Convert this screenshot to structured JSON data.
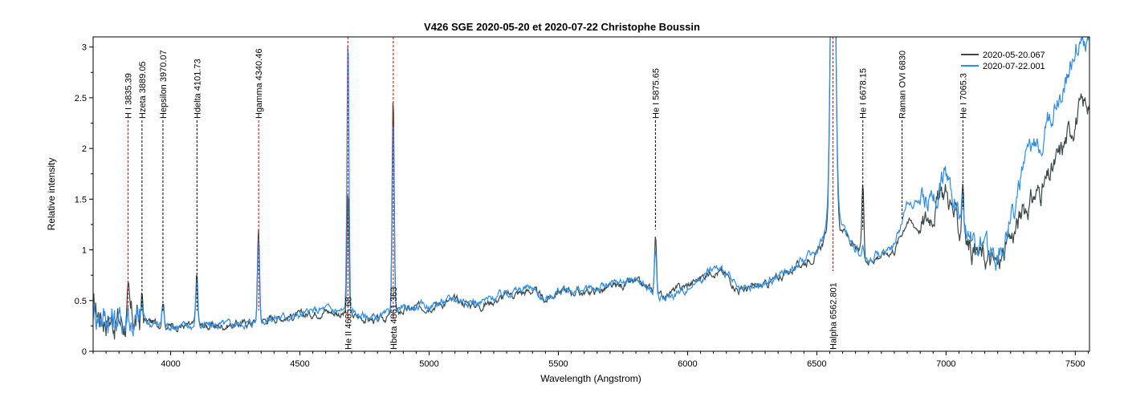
{
  "chart_data": {
    "type": "line",
    "title": "V426 SGE   2020-05-20 et 2020-07-22   Christophe Boussin",
    "xlabel": "Wavelength (Angstrom)",
    "ylabel": "Relative intensity",
    "xlim": [
      3700,
      7555
    ],
    "ylim": [
      0,
      3.1
    ],
    "xticks": [
      4000,
      4500,
      5000,
      5500,
      6000,
      6500,
      7000,
      7500
    ],
    "yticks": [
      0,
      0.5,
      1,
      1.5,
      2,
      2.5,
      3
    ],
    "legend_position": "top-right",
    "series": [
      {
        "name": "2020-05-20.067",
        "color": "#3a4a48",
        "continuum": [
          [
            3700,
            0.4
          ],
          [
            3800,
            0.3
          ],
          [
            3900,
            0.3
          ],
          [
            4000,
            0.25
          ],
          [
            4100,
            0.25
          ],
          [
            4200,
            0.25
          ],
          [
            4300,
            0.28
          ],
          [
            4400,
            0.33
          ],
          [
            4500,
            0.35
          ],
          [
            4600,
            0.4
          ],
          [
            4700,
            0.35
          ],
          [
            4800,
            0.3
          ],
          [
            4900,
            0.4
          ],
          [
            5000,
            0.45
          ],
          [
            5100,
            0.5
          ],
          [
            5200,
            0.45
          ],
          [
            5300,
            0.55
          ],
          [
            5400,
            0.6
          ],
          [
            5450,
            0.5
          ],
          [
            5500,
            0.6
          ],
          [
            5600,
            0.58
          ],
          [
            5700,
            0.62
          ],
          [
            5800,
            0.68
          ],
          [
            5900,
            0.55
          ],
          [
            6000,
            0.65
          ],
          [
            6100,
            0.8
          ],
          [
            6150,
            0.75
          ],
          [
            6200,
            0.6
          ],
          [
            6300,
            0.65
          ],
          [
            6400,
            0.8
          ],
          [
            6500,
            0.95
          ],
          [
            6550,
            1.2
          ],
          [
            6600,
            1.2
          ],
          [
            6650,
            1.0
          ],
          [
            6700,
            0.9
          ],
          [
            6800,
            1.0
          ],
          [
            6850,
            1.3
          ],
          [
            6900,
            1.2
          ],
          [
            7000,
            1.6
          ],
          [
            7050,
            1.2
          ],
          [
            7100,
            1.0
          ],
          [
            7200,
            0.85
          ],
          [
            7250,
            1.1
          ],
          [
            7300,
            1.4
          ],
          [
            7400,
            1.7
          ],
          [
            7450,
            2.0
          ],
          [
            7500,
            2.3
          ],
          [
            7555,
            2.5
          ]
        ],
        "peaks": [
          [
            3835,
            0.2
          ],
          [
            3889,
            0.2
          ],
          [
            3970,
            0.25
          ],
          [
            4101,
            0.5
          ],
          [
            4340,
            0.9
          ],
          [
            4686,
            1.2
          ],
          [
            4861,
            2.15
          ],
          [
            5876,
            0.55
          ],
          [
            6563,
            4.0
          ],
          [
            6678,
            0.7
          ],
          [
            7065,
            0.6
          ]
        ]
      },
      {
        "name": "2020-07-22.001",
        "color": "#2e8ee8",
        "continuum": [
          [
            3700,
            0.4
          ],
          [
            3800,
            0.3
          ],
          [
            3900,
            0.28
          ],
          [
            4000,
            0.25
          ],
          [
            4100,
            0.25
          ],
          [
            4200,
            0.26
          ],
          [
            4300,
            0.28
          ],
          [
            4400,
            0.33
          ],
          [
            4500,
            0.36
          ],
          [
            4600,
            0.42
          ],
          [
            4700,
            0.38
          ],
          [
            4800,
            0.32
          ],
          [
            4900,
            0.42
          ],
          [
            5000,
            0.45
          ],
          [
            5100,
            0.52
          ],
          [
            5200,
            0.48
          ],
          [
            5300,
            0.58
          ],
          [
            5400,
            0.63
          ],
          [
            5450,
            0.5
          ],
          [
            5500,
            0.6
          ],
          [
            5600,
            0.6
          ],
          [
            5700,
            0.65
          ],
          [
            5800,
            0.72
          ],
          [
            5900,
            0.5
          ],
          [
            6000,
            0.62
          ],
          [
            6100,
            0.82
          ],
          [
            6150,
            0.78
          ],
          [
            6200,
            0.58
          ],
          [
            6300,
            0.66
          ],
          [
            6400,
            0.82
          ],
          [
            6500,
            1.0
          ],
          [
            6550,
            1.3
          ],
          [
            6600,
            1.25
          ],
          [
            6650,
            1.0
          ],
          [
            6700,
            0.9
          ],
          [
            6800,
            1.05
          ],
          [
            6850,
            1.45
          ],
          [
            6950,
            1.5
          ],
          [
            7000,
            1.75
          ],
          [
            7050,
            1.4
          ],
          [
            7100,
            1.1
          ],
          [
            7200,
            0.9
          ],
          [
            7250,
            1.3
          ],
          [
            7300,
            1.8
          ],
          [
            7400,
            2.3
          ],
          [
            7450,
            2.6
          ],
          [
            7500,
            3.0
          ],
          [
            7555,
            3.1
          ]
        ],
        "peaks": [
          [
            3835,
            0.15
          ],
          [
            3889,
            0.15
          ],
          [
            3970,
            0.2
          ],
          [
            4101,
            0.45
          ],
          [
            4340,
            0.8
          ],
          [
            4686,
            2.7
          ],
          [
            4861,
            1.9
          ],
          [
            5876,
            0.45
          ],
          [
            6563,
            4.0
          ],
          [
            6678,
            0.1
          ],
          [
            7065,
            0.3
          ]
        ]
      }
    ],
    "annotations": [
      {
        "label": "H I 3835.39",
        "x": 3835.39,
        "color": "#e00000",
        "pos": "top"
      },
      {
        "label": "Hzeta 3889.05",
        "x": 3889.05,
        "color": "#000000",
        "pos": "top"
      },
      {
        "label": "Hepsilon 3970.07",
        "x": 3970.07,
        "color": "#000000",
        "pos": "top"
      },
      {
        "label": "Hdelta 4101.73",
        "x": 4101.73,
        "color": "#000000",
        "pos": "top"
      },
      {
        "label": "Hgamma 4340.46",
        "x": 4340.46,
        "color": "#e00000",
        "pos": "top"
      },
      {
        "label": "He II 4685.68",
        "x": 4685.68,
        "color": "#e00000",
        "pos": "bottom"
      },
      {
        "label": "Hbeta 4861.363",
        "x": 4861.363,
        "color": "#e00000",
        "pos": "bottom"
      },
      {
        "label": "He I 5875.65",
        "x": 5875.65,
        "color": "#000000",
        "pos": "top"
      },
      {
        "label": "Halpha 6562.801",
        "x": 6562.801,
        "color": "#e00000",
        "pos": "bottom"
      },
      {
        "label": "He I 6678.15",
        "x": 6678.15,
        "color": "#000000",
        "pos": "top"
      },
      {
        "label": "Raman OVI 6830",
        "x": 6830,
        "color": "#000000",
        "pos": "top"
      },
      {
        "label": "He I 7065.3",
        "x": 7065.3,
        "color": "#000000",
        "pos": "top"
      }
    ]
  }
}
